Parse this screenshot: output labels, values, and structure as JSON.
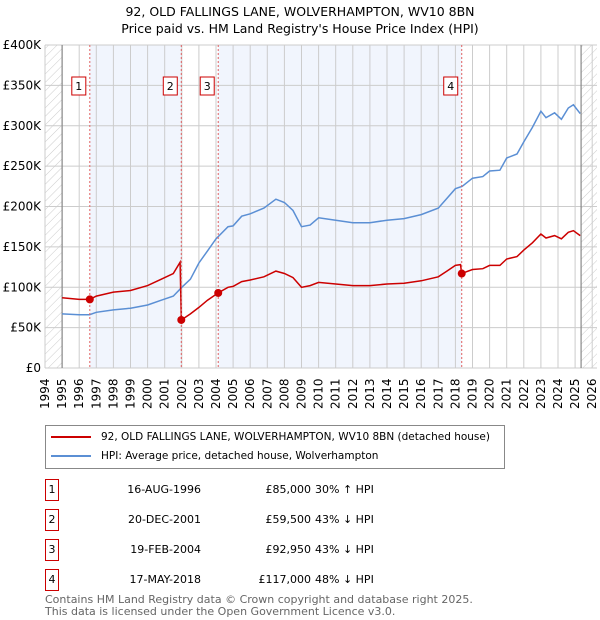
{
  "title": "92, OLD FALLINGS LANE, WOLVERHAMPTON, WV10 8BN",
  "subtitle": "Price paid vs. HM Land Registry's House Price Index (HPI)",
  "chart_data": {
    "type": "line",
    "ylim": [
      0,
      400000
    ],
    "xlim": [
      1994,
      2026
    ],
    "yticks": [
      {
        "v": 0,
        "label": "£0"
      },
      {
        "v": 50000,
        "label": "£50K"
      },
      {
        "v": 100000,
        "label": "£100K"
      },
      {
        "v": 150000,
        "label": "£150K"
      },
      {
        "v": 200000,
        "label": "£200K"
      },
      {
        "v": 250000,
        "label": "£250K"
      },
      {
        "v": 300000,
        "label": "£300K"
      },
      {
        "v": 350000,
        "label": "£350K"
      },
      {
        "v": 400000,
        "label": "£400K"
      }
    ],
    "xticks": [
      "1994",
      "1995",
      "1996",
      "1997",
      "1998",
      "1999",
      "2000",
      "2001",
      "2002",
      "2003",
      "2004",
      "2005",
      "2006",
      "2007",
      "2008",
      "2009",
      "2010",
      "2011",
      "2012",
      "2013",
      "2014",
      "2015",
      "2016",
      "2017",
      "2018",
      "2019",
      "2020",
      "2021",
      "2022",
      "2023",
      "2024",
      "2025",
      "2026"
    ],
    "grid": true,
    "legend_placement": "below",
    "series": [
      {
        "name": "92, OLD FALLINGS LANE, WOLVERHAMPTON, WV10 8BN (detached house)",
        "color": "#cc0000",
        "points": [
          [
            1995,
            87
          ],
          [
            1996,
            85
          ],
          [
            1996.62,
            85
          ],
          [
            1997,
            89
          ],
          [
            1998,
            94
          ],
          [
            1999,
            96
          ],
          [
            2000,
            102
          ],
          [
            2000.8,
            110
          ],
          [
            2001.5,
            117
          ],
          [
            2001.9,
            131
          ],
          [
            2001.97,
            59.5
          ],
          [
            2002.5,
            67
          ],
          [
            2003,
            75
          ],
          [
            2003.5,
            84
          ],
          [
            2004.13,
            92.95
          ],
          [
            2004.7,
            100
          ],
          [
            2005,
            101
          ],
          [
            2005.5,
            107
          ],
          [
            2006,
            109
          ],
          [
            2006.8,
            113
          ],
          [
            2007.5,
            120
          ],
          [
            2008,
            117
          ],
          [
            2008.5,
            112
          ],
          [
            2009,
            100
          ],
          [
            2009.5,
            102
          ],
          [
            2010,
            106
          ],
          [
            2011,
            104
          ],
          [
            2012,
            102
          ],
          [
            2013,
            102
          ],
          [
            2014,
            104
          ],
          [
            2015,
            105
          ],
          [
            2016,
            108
          ],
          [
            2017,
            113
          ],
          [
            2017.5,
            120
          ],
          [
            2018,
            127
          ],
          [
            2018.3,
            128
          ],
          [
            2018.37,
            117
          ],
          [
            2019,
            122
          ],
          [
            2019.6,
            123
          ],
          [
            2020,
            127
          ],
          [
            2020.6,
            127
          ],
          [
            2021,
            135
          ],
          [
            2021.6,
            138
          ],
          [
            2022,
            146
          ],
          [
            2022.5,
            155
          ],
          [
            2023,
            166
          ],
          [
            2023.3,
            161
          ],
          [
            2023.8,
            164
          ],
          [
            2024.2,
            160
          ],
          [
            2024.6,
            168
          ],
          [
            2024.9,
            170
          ],
          [
            2025.3,
            164
          ]
        ]
      },
      {
        "name": "HPI: Average price, detached house, Wolverhampton",
        "color": "#5b8fd4",
        "points": [
          [
            1995,
            67
          ],
          [
            1996,
            66
          ],
          [
            1996.6,
            66
          ],
          [
            1997,
            69
          ],
          [
            1998,
            72
          ],
          [
            1999,
            74
          ],
          [
            2000,
            78
          ],
          [
            2000.8,
            84
          ],
          [
            2001.5,
            89
          ],
          [
            2002,
            100
          ],
          [
            2002.5,
            110
          ],
          [
            2003,
            130
          ],
          [
            2003.5,
            145
          ],
          [
            2004,
            160
          ],
          [
            2004.7,
            175
          ],
          [
            2005,
            176
          ],
          [
            2005.5,
            188
          ],
          [
            2006,
            191
          ],
          [
            2006.8,
            198
          ],
          [
            2007.5,
            209
          ],
          [
            2008,
            205
          ],
          [
            2008.5,
            195
          ],
          [
            2009,
            175
          ],
          [
            2009.5,
            177
          ],
          [
            2010,
            186
          ],
          [
            2011,
            183
          ],
          [
            2012,
            180
          ],
          [
            2013,
            180
          ],
          [
            2014,
            183
          ],
          [
            2015,
            185
          ],
          [
            2016,
            190
          ],
          [
            2017,
            198
          ],
          [
            2017.5,
            210
          ],
          [
            2018,
            222
          ],
          [
            2018.4,
            225
          ],
          [
            2019,
            235
          ],
          [
            2019.6,
            237
          ],
          [
            2020,
            244
          ],
          [
            2020.6,
            245
          ],
          [
            2021,
            260
          ],
          [
            2021.6,
            265
          ],
          [
            2022,
            280
          ],
          [
            2022.5,
            298
          ],
          [
            2023,
            318
          ],
          [
            2023.3,
            310
          ],
          [
            2023.8,
            316
          ],
          [
            2024.2,
            308
          ],
          [
            2024.6,
            322
          ],
          [
            2024.9,
            326
          ],
          [
            2025.3,
            315
          ]
        ]
      }
    ],
    "value_unit": "thousand GBP",
    "sales": [
      {
        "n": "1",
        "year": 1996.62,
        "value": 85
      },
      {
        "n": "2",
        "year": 2001.97,
        "value": 59.5
      },
      {
        "n": "3",
        "year": 2004.13,
        "value": 92.95
      },
      {
        "n": "4",
        "year": 2018.37,
        "value": 117
      }
    ]
  },
  "legend": {
    "red": "92, OLD FALLINGS LANE, WOLVERHAMPTON, WV10 8BN (detached house)",
    "blue": "HPI: Average price, detached house, Wolverhampton"
  },
  "sales_table": [
    {
      "n": "1",
      "date": "16-AUG-1996",
      "price": "£85,000",
      "hpi": "30% ↑ HPI"
    },
    {
      "n": "2",
      "date": "20-DEC-2001",
      "price": "£59,500",
      "hpi": "43% ↓ HPI"
    },
    {
      "n": "3",
      "date": "19-FEB-2004",
      "price": "£92,950",
      "hpi": "43% ↓ HPI"
    },
    {
      "n": "4",
      "date": "17-MAY-2018",
      "price": "£117,000",
      "hpi": "48% ↓ HPI"
    }
  ],
  "footer": {
    "line1": "Contains HM Land Registry data © Crown copyright and database right 2025.",
    "line2": "This data is licensed under the Open Government Licence v3.0."
  }
}
